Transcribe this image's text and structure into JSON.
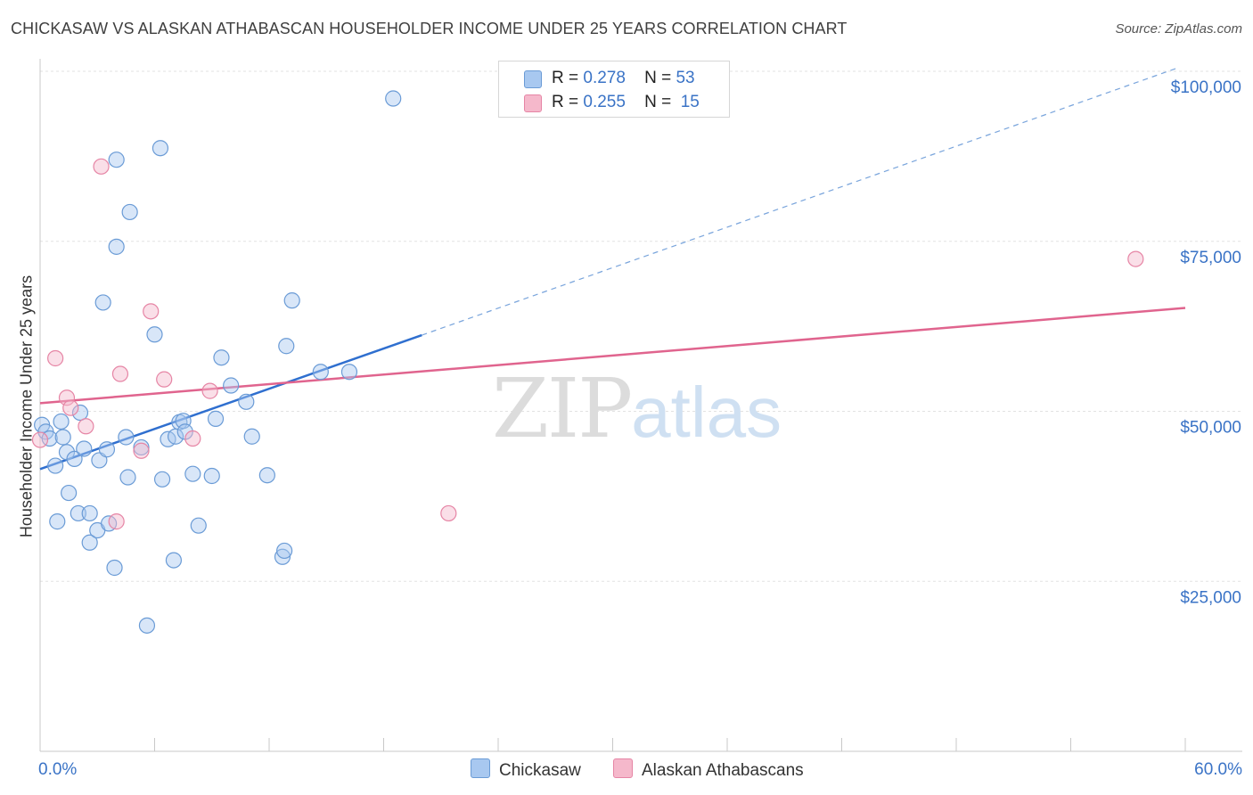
{
  "header": {
    "title": "CHICKASAW VS ALASKAN ATHABASCAN HOUSEHOLDER INCOME UNDER 25 YEARS CORRELATION CHART",
    "source": "Source: ZipAtlas.com"
  },
  "watermark": {
    "zip": "ZIP",
    "atlas": "atlas"
  },
  "legend": {
    "r_label": "R =",
    "n_label": "N =",
    "items": [
      {
        "name": "Chickasaw",
        "r": "0.278",
        "n": "53",
        "color": "#a8c8f0",
        "edge": "#6a9bd6"
      },
      {
        "name": "Alaskan Athabascans",
        "r": "0.255",
        "n": "15",
        "color": "#f5b8cb",
        "edge": "#e685a5"
      }
    ]
  },
  "chart_data": {
    "type": "scatter",
    "title": "CHICKASAW VS ALASKAN ATHABASCAN HOUSEHOLDER INCOME UNDER 25 YEARS CORRELATION CHART",
    "xlabel": "",
    "ylabel": "Householder Income Under 25 years",
    "xlim": [
      0,
      60
    ],
    "ylim": [
      0,
      102000
    ],
    "x_tick_labels": [
      "0.0%",
      "60.0%"
    ],
    "y_ticks": [
      25000,
      50000,
      75000,
      100000
    ],
    "y_tick_labels": [
      "$25,000",
      "$50,000",
      "$75,000",
      "$100,000"
    ],
    "grid": true,
    "series": [
      {
        "name": "Chickasaw",
        "color": "#6a9bd6",
        "fill": "#a8c8f0",
        "points": [
          [
            0.1,
            48000
          ],
          [
            0.3,
            47000
          ],
          [
            0.5,
            46000
          ],
          [
            0.8,
            42000
          ],
          [
            0.9,
            33800
          ],
          [
            1.1,
            48500
          ],
          [
            1.2,
            46200
          ],
          [
            1.4,
            44000
          ],
          [
            1.5,
            38000
          ],
          [
            1.8,
            43000
          ],
          [
            2.0,
            35000
          ],
          [
            2.1,
            49800
          ],
          [
            2.3,
            44500
          ],
          [
            2.6,
            35000
          ],
          [
            2.6,
            30700
          ],
          [
            3.0,
            32500
          ],
          [
            3.1,
            42800
          ],
          [
            3.3,
            66000
          ],
          [
            3.5,
            44400
          ],
          [
            3.6,
            33500
          ],
          [
            3.9,
            27000
          ],
          [
            4.0,
            74200
          ],
          [
            4.0,
            87000
          ],
          [
            4.5,
            46200
          ],
          [
            4.6,
            40300
          ],
          [
            4.7,
            79300
          ],
          [
            5.3,
            44700
          ],
          [
            5.6,
            18500
          ],
          [
            6.0,
            61300
          ],
          [
            6.3,
            88700
          ],
          [
            6.4,
            40000
          ],
          [
            6.7,
            45900
          ],
          [
            7.0,
            28100
          ],
          [
            7.1,
            46300
          ],
          [
            7.3,
            48400
          ],
          [
            7.5,
            48600
          ],
          [
            7.6,
            47000
          ],
          [
            8.0,
            40800
          ],
          [
            8.3,
            33200
          ],
          [
            9.0,
            40500
          ],
          [
            9.2,
            48900
          ],
          [
            9.5,
            57900
          ],
          [
            10.0,
            53800
          ],
          [
            10.8,
            51400
          ],
          [
            11.1,
            46300
          ],
          [
            11.9,
            40600
          ],
          [
            12.7,
            28600
          ],
          [
            12.8,
            29500
          ],
          [
            12.9,
            59600
          ],
          [
            13.2,
            66300
          ],
          [
            14.7,
            55800
          ],
          [
            16.2,
            55800
          ],
          [
            18.5,
            96000
          ]
        ],
        "trend": {
          "x0": 0,
          "y0": 41500,
          "x1": 20,
          "y1": 61200,
          "extend_to_x": 59.5,
          "extend_to_y": 100400
        }
      },
      {
        "name": "Alaskan Athabascans",
        "color": "#e685a5",
        "fill": "#f5b8cb",
        "points": [
          [
            0.0,
            45800
          ],
          [
            0.8,
            57800
          ],
          [
            1.4,
            52000
          ],
          [
            1.6,
            50500
          ],
          [
            2.4,
            47800
          ],
          [
            3.2,
            86000
          ],
          [
            4.0,
            33800
          ],
          [
            4.2,
            55500
          ],
          [
            5.3,
            44200
          ],
          [
            5.8,
            64700
          ],
          [
            6.5,
            54700
          ],
          [
            8.0,
            46000
          ],
          [
            8.9,
            53000
          ],
          [
            21.4,
            35000
          ],
          [
            57.4,
            72400
          ]
        ],
        "trend": {
          "x0": 0,
          "y0": 51200,
          "x1": 60,
          "y1": 65200
        }
      }
    ]
  }
}
